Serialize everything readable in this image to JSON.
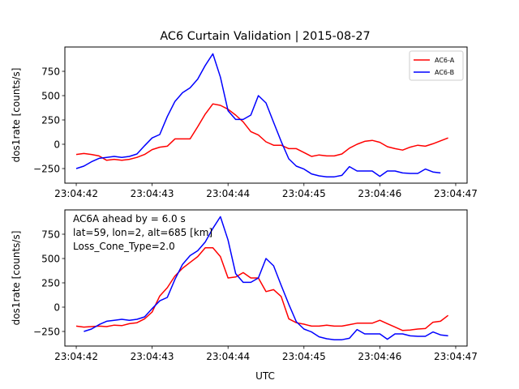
{
  "figure": {
    "title": "AC6 Curtain Validation | 2015-08-27",
    "xlabel": "UTC"
  },
  "colors": {
    "ac6a": "#ff0000",
    "ac6b": "#0000ff",
    "axes": "#000000"
  },
  "chart_data": [
    {
      "type": "line",
      "title": "AC6 Curtain Validation | 2015-08-27",
      "xlabel": "",
      "ylabel": "dos1rate [counts/s]",
      "xlim": [
        "23:04:41.85",
        "23:04:47.15"
      ],
      "ylim": [
        -400,
        1000
      ],
      "xticks": [
        "23:04:42",
        "23:04:43",
        "23:04:44",
        "23:04:45",
        "23:04:46",
        "23:04:47"
      ],
      "yticks": [
        -250,
        0,
        250,
        500,
        750
      ],
      "grid": false,
      "legend": {
        "position": "top-right",
        "entries": [
          "AC6-A",
          "AC6-B"
        ]
      },
      "annotations": [],
      "series": [
        {
          "name": "AC6-A",
          "color": "#ff0000",
          "x": [
            "23:04:42.0",
            "23:04:42.1",
            "23:04:42.2",
            "23:04:42.3",
            "23:04:42.4",
            "23:04:42.5",
            "23:04:42.6",
            "23:04:42.7",
            "23:04:42.8",
            "23:04:42.9",
            "23:04:43.0",
            "23:04:43.1",
            "23:04:43.2",
            "23:04:43.3",
            "23:04:43.4",
            "23:04:43.5",
            "23:04:43.6",
            "23:04:43.7",
            "23:04:43.8",
            "23:04:43.9",
            "23:04:44.0",
            "23:04:44.1",
            "23:04:44.2",
            "23:04:44.3",
            "23:04:44.4",
            "23:04:44.5",
            "23:04:44.6",
            "23:04:44.7",
            "23:04:44.8",
            "23:04:44.9",
            "23:04:45.0",
            "23:04:45.1",
            "23:04:45.2",
            "23:04:45.3",
            "23:04:45.4",
            "23:04:45.5",
            "23:04:45.6",
            "23:04:45.7",
            "23:04:45.8",
            "23:04:45.9",
            "23:04:46.0",
            "23:04:46.1",
            "23:04:46.2",
            "23:04:46.3",
            "23:04:46.4",
            "23:04:46.5",
            "23:04:46.6",
            "23:04:46.7",
            "23:04:46.8",
            "23:04:46.9"
          ],
          "y": [
            -105,
            -95,
            -105,
            -120,
            -165,
            -155,
            -165,
            -155,
            -135,
            -105,
            -55,
            -30,
            -20,
            55,
            55,
            55,
            180,
            310,
            415,
            400,
            360,
            300,
            230,
            130,
            95,
            25,
            -10,
            -10,
            -45,
            -45,
            -85,
            -125,
            -110,
            -120,
            -120,
            -100,
            -40,
            0,
            30,
            40,
            20,
            -25,
            -45,
            -60,
            -30,
            -10,
            -20,
            5,
            35,
            65
          ]
        },
        {
          "name": "AC6-B",
          "color": "#0000ff",
          "x": [
            "23:04:42.0",
            "23:04:42.1",
            "23:04:42.2",
            "23:04:42.3",
            "23:04:42.4",
            "23:04:42.5",
            "23:04:42.6",
            "23:04:42.7",
            "23:04:42.8",
            "23:04:42.9",
            "23:04:43.0",
            "23:04:43.1",
            "23:04:43.2",
            "23:04:43.3",
            "23:04:43.4",
            "23:04:43.5",
            "23:04:43.6",
            "23:04:43.7",
            "23:04:43.8",
            "23:04:43.9",
            "23:04:44.0",
            "23:04:44.1",
            "23:04:44.2",
            "23:04:44.3",
            "23:04:44.4",
            "23:04:44.5",
            "23:04:44.6",
            "23:04:44.7",
            "23:04:44.8",
            "23:04:44.9",
            "23:04:45.0",
            "23:04:45.1",
            "23:04:45.2",
            "23:04:45.3",
            "23:04:45.4",
            "23:04:45.5",
            "23:04:45.6",
            "23:04:45.7",
            "23:04:45.8",
            "23:04:45.9",
            "23:04:46.0",
            "23:04:46.1",
            "23:04:46.2",
            "23:04:46.3",
            "23:04:46.4",
            "23:04:46.5",
            "23:04:46.6",
            "23:04:46.7",
            "23:04:46.8",
            "23:04:46.9"
          ],
          "y": [
            -250,
            -225,
            -180,
            -145,
            -135,
            -125,
            -135,
            -125,
            -100,
            -15,
            65,
            100,
            285,
            440,
            530,
            580,
            670,
            810,
            930,
            690,
            345,
            255,
            255,
            300,
            500,
            425,
            225,
            30,
            -150,
            -225,
            -255,
            -305,
            -325,
            -335,
            -335,
            -320,
            -230,
            -275,
            -275,
            -275,
            -330,
            -275,
            -275,
            -295,
            -300,
            -300,
            -255,
            -285,
            -295,
            null
          ]
        }
      ]
    },
    {
      "type": "line",
      "title": "",
      "xlabel": "UTC",
      "ylabel": "dos1rate [counts/s]",
      "xlim": [
        "23:04:41.85",
        "23:04:47.15"
      ],
      "ylim": [
        -400,
        1000
      ],
      "xticks": [
        "23:04:42",
        "23:04:43",
        "23:04:44",
        "23:04:45",
        "23:04:46",
        "23:04:47"
      ],
      "yticks": [
        -250,
        0,
        250,
        500,
        750
      ],
      "grid": false,
      "annotations": [
        "AC6A ahead by = 6.0 s",
        "lat=59, lon=2, alt=685 [km]",
        "Loss_Cone_Type=2.0"
      ],
      "series": [
        {
          "name": "AC6-A",
          "color": "#ff0000",
          "x": [
            "23:04:42.0",
            "23:04:42.1",
            "23:04:42.2",
            "23:04:42.3",
            "23:04:42.4",
            "23:04:42.5",
            "23:04:42.6",
            "23:04:42.7",
            "23:04:42.8",
            "23:04:42.9",
            "23:04:43.0",
            "23:04:43.1",
            "23:04:43.2",
            "23:04:43.3",
            "23:04:43.4",
            "23:04:43.5",
            "23:04:43.6",
            "23:04:43.7",
            "23:04:43.8",
            "23:04:43.9",
            "23:04:44.0",
            "23:04:44.1",
            "23:04:44.2",
            "23:04:44.3",
            "23:04:44.4",
            "23:04:44.5",
            "23:04:44.6",
            "23:04:44.7",
            "23:04:44.8",
            "23:04:44.9",
            "23:04:45.0",
            "23:04:45.1",
            "23:04:45.2",
            "23:04:45.3",
            "23:04:45.4",
            "23:04:45.5",
            "23:04:45.6",
            "23:04:45.7",
            "23:04:45.8",
            "23:04:45.9",
            "23:04:46.0",
            "23:04:46.1",
            "23:04:46.2",
            "23:04:46.3",
            "23:04:46.4",
            "23:04:46.5",
            "23:04:46.6",
            "23:04:46.7",
            "23:04:46.8",
            "23:04:46.9"
          ],
          "y": [
            -195,
            -205,
            -200,
            -195,
            -200,
            -185,
            -190,
            -170,
            -160,
            -120,
            -50,
            115,
            200,
            320,
            400,
            460,
            520,
            610,
            610,
            520,
            300,
            310,
            355,
            300,
            300,
            160,
            180,
            110,
            -120,
            -160,
            -175,
            -195,
            -195,
            -185,
            -195,
            -195,
            -180,
            -165,
            -165,
            -165,
            -135,
            -170,
            -205,
            -240,
            -235,
            -225,
            -220,
            -155,
            -145,
            -85
          ]
        },
        {
          "name": "AC6-B",
          "color": "#0000ff",
          "x": [
            "23:04:42.0",
            "23:04:42.1",
            "23:04:42.2",
            "23:04:42.3",
            "23:04:42.4",
            "23:04:42.5",
            "23:04:42.6",
            "23:04:42.7",
            "23:04:42.8",
            "23:04:42.9",
            "23:04:43.0",
            "23:04:43.1",
            "23:04:43.2",
            "23:04:43.3",
            "23:04:43.4",
            "23:04:43.5",
            "23:04:43.6",
            "23:04:43.7",
            "23:04:43.8",
            "23:04:43.9",
            "23:04:44.0",
            "23:04:44.1",
            "23:04:44.2",
            "23:04:44.3",
            "23:04:44.4",
            "23:04:44.5",
            "23:04:44.6",
            "23:04:44.7",
            "23:04:44.8",
            "23:04:44.9",
            "23:04:45.0",
            "23:04:45.1",
            "23:04:45.2",
            "23:04:45.3",
            "23:04:45.4",
            "23:04:45.5",
            "23:04:45.6",
            "23:04:45.7",
            "23:04:45.8",
            "23:04:45.9",
            "23:04:46.0",
            "23:04:46.1",
            "23:04:46.2",
            "23:04:46.3",
            "23:04:46.4",
            "23:04:46.5",
            "23:04:46.6",
            "23:04:46.7",
            "23:04:46.8",
            "23:04:46.9"
          ],
          "y": [
            null,
            -250,
            -225,
            -180,
            -145,
            -135,
            -125,
            -135,
            -125,
            -100,
            -15,
            65,
            100,
            285,
            440,
            530,
            580,
            670,
            810,
            930,
            690,
            345,
            255,
            255,
            300,
            500,
            425,
            225,
            30,
            -150,
            -225,
            -255,
            -305,
            -325,
            -335,
            -335,
            -320,
            -230,
            -275,
            -275,
            -275,
            -330,
            -275,
            -275,
            -295,
            -300,
            -300,
            -255,
            -285,
            -295
          ]
        }
      ]
    }
  ]
}
